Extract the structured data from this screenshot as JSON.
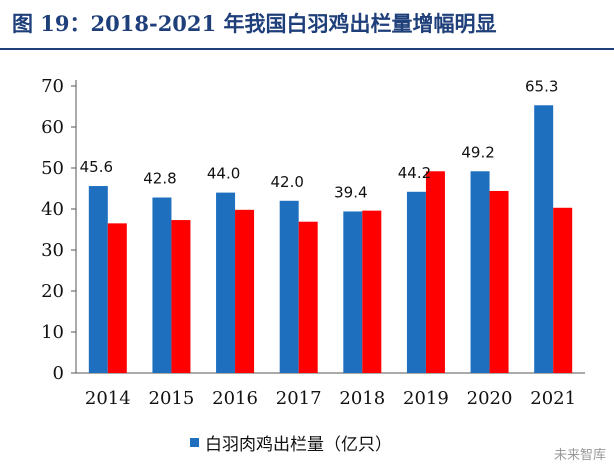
{
  "figure": {
    "title": "图 19：2018-2021 年我国白羽鸡出栏量增幅明显"
  },
  "watermark": "未来智库",
  "chart_data": {
    "type": "bar",
    "categories": [
      "2014",
      "2015",
      "2016",
      "2017",
      "2018",
      "2019",
      "2020",
      "2021"
    ],
    "series": [
      {
        "name": "白羽肉鸡出栏量（亿只）",
        "color": "#1f6fbf",
        "values": [
          45.6,
          42.8,
          44.0,
          42.0,
          39.4,
          44.2,
          49.2,
          65.3
        ],
        "labels": [
          "45.6",
          "42.8",
          "44.0",
          "42.0",
          "39.4",
          "44.2",
          "49.2",
          "65.3"
        ]
      },
      {
        "name": "",
        "color": "#ff0000",
        "values": [
          36.5,
          37.3,
          39.8,
          36.9,
          39.6,
          49.2,
          44.4,
          40.3
        ]
      }
    ],
    "yticks": [
      "0",
      "10",
      "20",
      "30",
      "40",
      "50",
      "60",
      "70"
    ],
    "ylim": [
      0,
      70
    ],
    "grid": false,
    "legend_position": "bottom"
  }
}
